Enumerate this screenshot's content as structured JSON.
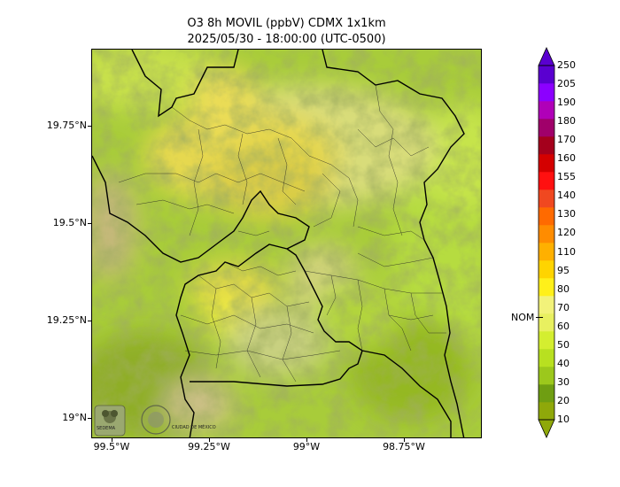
{
  "title": {
    "line1": "O3 8h MOVIL (ppbV) CDMX 1x1km",
    "line2": "2025/05/30 - 18:00:00 (UTC-0500)"
  },
  "map": {
    "y_ticks": [
      "19.75°N",
      "19.5°N",
      "19.25°N",
      "19°N"
    ],
    "x_ticks": [
      "99.5°W",
      "99.25°W",
      "99°W",
      "98.75°W"
    ],
    "logos": [
      "SEDEMA",
      "CIUDAD DE MÉXICO"
    ]
  },
  "colorbar": {
    "labels": [
      "250",
      "205",
      "190",
      "180",
      "170",
      "160",
      "155",
      "140",
      "130",
      "120",
      "110",
      "95",
      "80",
      "70",
      "60",
      "50",
      "40",
      "30",
      "20",
      "10"
    ],
    "colors": [
      "#8fa80a",
      "#6f9e12",
      "#9cc81c",
      "#b8e020",
      "#d4ee30",
      "#e8f060",
      "#f2f27a",
      "#fff01a",
      "#ffd400",
      "#ffb000",
      "#ff8c00",
      "#ff6a00",
      "#f04820",
      "#ff1010",
      "#d40000",
      "#a4001c",
      "#a0006a",
      "#b000b8",
      "#8c00ff",
      "#5a00d0"
    ],
    "nom_label": "NOM"
  }
}
